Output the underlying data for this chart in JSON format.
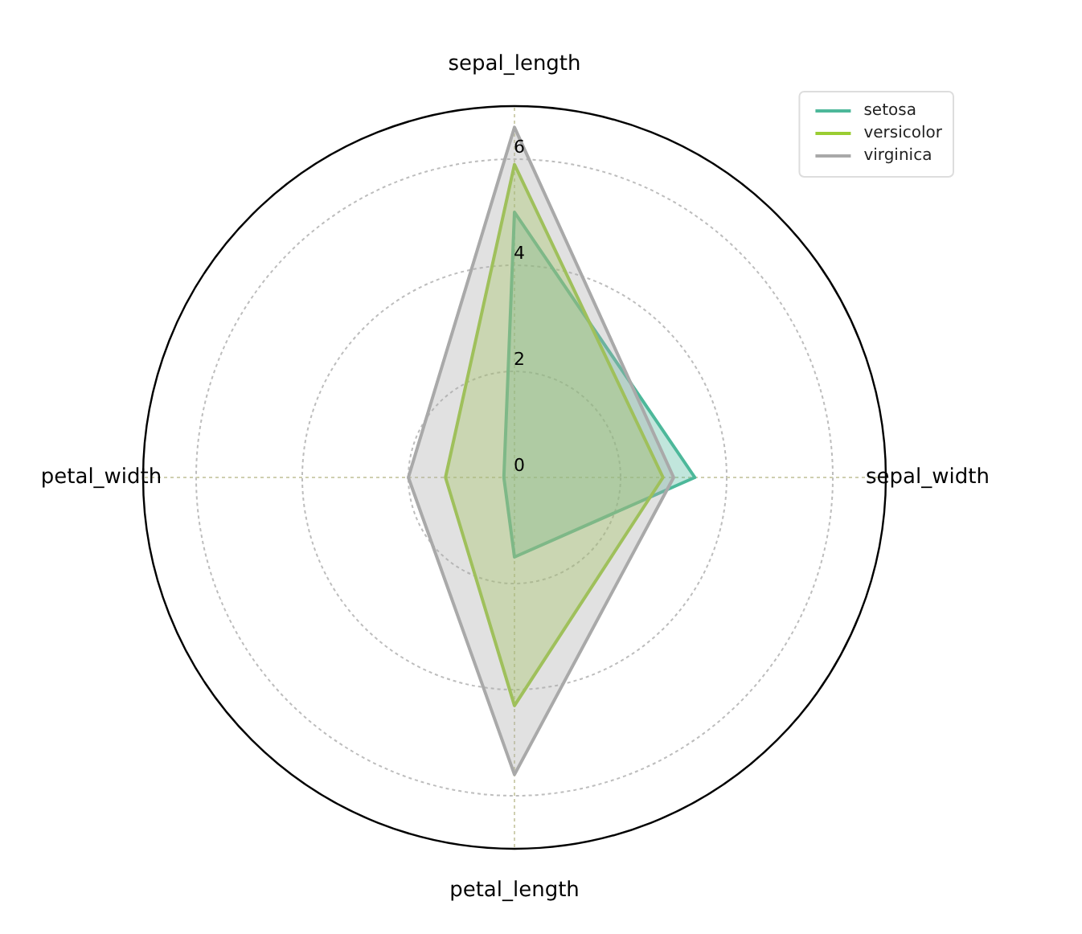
{
  "chart_data": {
    "type": "radar",
    "categories": [
      "sepal_length",
      "sepal_width",
      "petal_length",
      "petal_width"
    ],
    "series": [
      {
        "name": "setosa",
        "color": "#4db89a",
        "values": [
          5.0,
          3.4,
          1.5,
          0.2
        ]
      },
      {
        "name": "versicolor",
        "color": "#9acd32",
        "values": [
          5.9,
          2.8,
          4.3,
          1.3
        ]
      },
      {
        "name": "virginica",
        "color": "#a9a9a9",
        "values": [
          6.6,
          3.0,
          5.6,
          2.0
        ]
      }
    ],
    "ylim": [
      0,
      7
    ],
    "yticks": [
      0,
      2,
      4,
      6
    ],
    "grid": true,
    "legend": "top right"
  }
}
